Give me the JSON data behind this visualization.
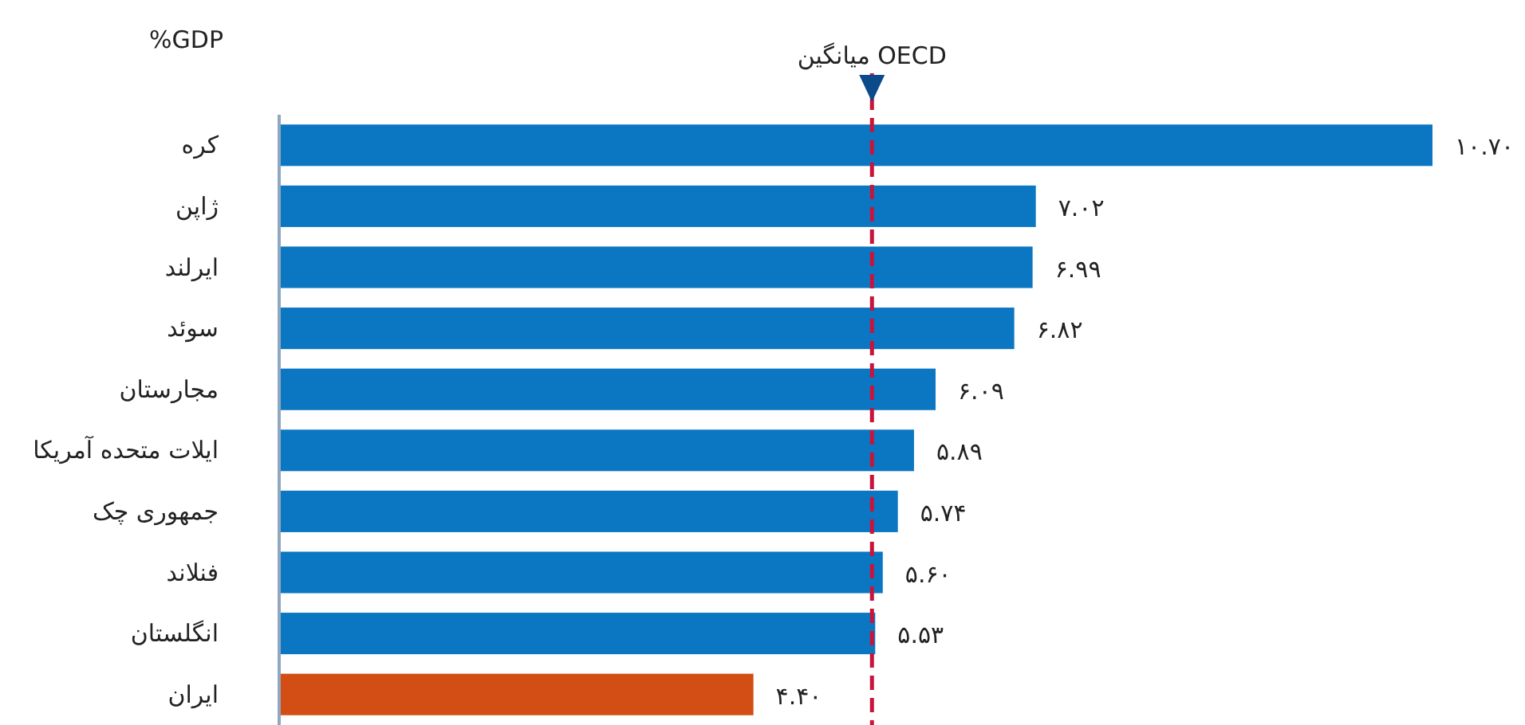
{
  "chart_data": {
    "type": "bar",
    "orientation": "horizontal",
    "categories": [
      "کره",
      "ژاپن",
      "ایرلند",
      "سوئد",
      "مجارستان",
      "ایلات متحده آمریکا",
      "جمهوری چک",
      "فنلاند",
      "انگلستان",
      "ایران"
    ],
    "values": [
      10.7,
      7.02,
      6.99,
      6.82,
      6.09,
      5.89,
      5.74,
      5.6,
      5.53,
      4.4
    ],
    "colors": [
      "#0b77c2",
      "#0b77c2",
      "#0b77c2",
      "#0b77c2",
      "#0b77c2",
      "#0b77c2",
      "#0b77c2",
      "#0b77c2",
      "#0b77c2",
      "#d24e14"
    ],
    "value_labels": [
      "۱۰.۷۰",
      "۷.۰۲",
      "۶.۹۹",
      "۶.۸۲",
      "۶.۰۹",
      "۵.۸۹",
      "۵.۷۴",
      "۵.۶۰",
      "۵.۵۳",
      "۴.۴۰"
    ],
    "ref_lines": [
      {
        "axis": "x",
        "value": 5.5,
        "label": "میانگین OECD",
        "color": "#c8143c",
        "line_style": "dashed"
      }
    ],
    "annotations": [
      "%GDP"
    ],
    "tick_labels": "y"
  }
}
